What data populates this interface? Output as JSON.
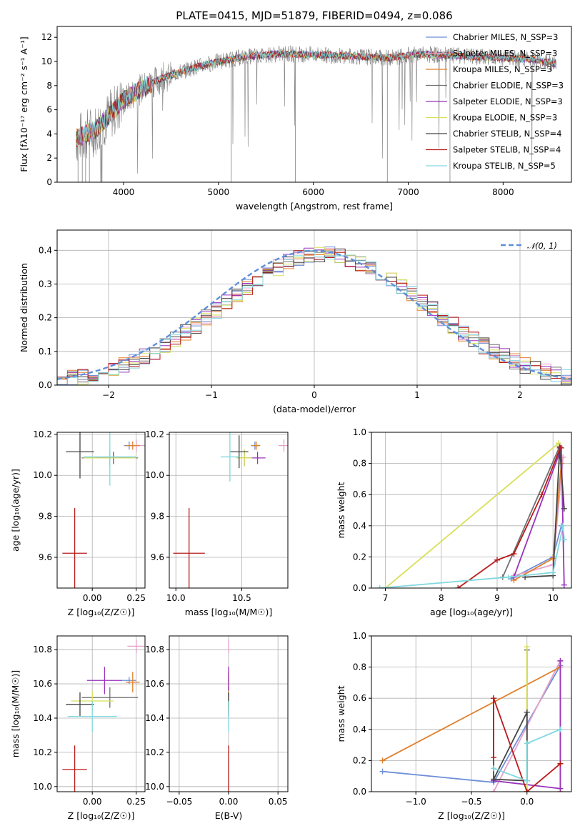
{
  "figure": {
    "title": "PLATE=0415, MJD=51879, FIBERID=0494, z=0.086"
  },
  "colors": {
    "Chabrier MILES": "#6e8fd8",
    "Salpeter MILES": "#e5a0c8",
    "Kroupa MILES": "#e07f2b",
    "Chabrier ELODIE": "#707070",
    "Salpeter ELODIE": "#9933bb",
    "Kroupa ELODIE": "#d8df58",
    "Chabrier STELIB": "#444444",
    "Salpeter STELIB": "#b81a1a",
    "Kroupa STELIB": "#7fd8e0",
    "normal": "#5f8fd8"
  },
  "chart_data": [
    {
      "id": "spectrum",
      "type": "line",
      "title": "PLATE=0415, MJD=51879, FIBERID=0494, z=0.086",
      "xlabel": "wavelength [Angstrom, rest frame]",
      "ylabel": "Flux [fλ10⁻¹⁷ erg cm⁻² s⁻¹ A⁻¹]",
      "xlim": [
        3300,
        8720
      ],
      "ylim": [
        0,
        12.9
      ],
      "xticks": [
        4000,
        5000,
        6000,
        7000,
        8000
      ],
      "yticks": [
        0,
        2,
        4,
        6,
        8,
        10,
        12
      ],
      "grid": false,
      "legend_position": "top-right",
      "legend": [
        "Chabrier MILES, N_SSP=3",
        "Salpeter MILES, N_SSP=3",
        "Kroupa MILES, N_SSP=3",
        "Chabrier ELODIE, N_SSP=3",
        "Salpeter ELODIE, N_SSP=3",
        "Kroupa ELODIE, N_SSP=3",
        "Chabrier STELIB, N_SSP=4",
        "Salpeter STELIB, N_SSP=4",
        "Kroupa STELIB, N_SSP=5"
      ],
      "continuum": {
        "x": [
          3500,
          3700,
          3850,
          4000,
          4200,
          4400,
          4700,
          5000,
          5300,
          5600,
          5900,
          6200,
          6500,
          6800,
          7100,
          7400,
          7700,
          8000,
          8300,
          8550
        ],
        "y": [
          3.6,
          4.3,
          5.5,
          6.8,
          7.8,
          8.6,
          9.4,
          10.0,
          10.4,
          10.6,
          10.6,
          10.5,
          10.4,
          10.3,
          10.6,
          10.5,
          10.4,
          10.3,
          10.2,
          9.8
        ]
      }
    },
    {
      "id": "residuals",
      "type": "histogram",
      "xlabel": "(data-model)/error",
      "ylabel": "Normed distribution",
      "xlim": [
        -2.5,
        2.5
      ],
      "ylim": [
        0,
        0.46
      ],
      "xticks": [
        -2,
        -1,
        0,
        1,
        2
      ],
      "yticks": [
        0.0,
        0.1,
        0.2,
        0.3,
        0.4
      ],
      "grid": true,
      "legend_position": "top-right",
      "normal_label": "𝒩(0, 1)",
      "bin_width": 0.1
    },
    {
      "id": "age_vs_Z",
      "type": "errorbar",
      "xlabel": "Z [log₁₀(Z/Z☉)]",
      "ylabel": "age  [log₁₀(age/yr)]",
      "xlim": [
        -0.2,
        0.3
      ],
      "ylim": [
        9.45,
        10.21
      ],
      "xticks": [
        0.0,
        0.25
      ],
      "yticks": [
        9.6,
        9.8,
        10.0,
        10.2
      ],
      "points": [
        {
          "series": "Chabrier MILES",
          "x": 0.21,
          "y": 10.145,
          "xerr": 0.03,
          "yerr": 0.02
        },
        {
          "series": "Salpeter MILES",
          "x": 0.25,
          "y": 10.145,
          "xerr": 0.05,
          "yerr": 0.03
        },
        {
          "series": "Kroupa MILES",
          "x": 0.23,
          "y": 10.145,
          "xerr": 0.04,
          "yerr": 0.02
        },
        {
          "series": "Chabrier ELODIE",
          "x": 0.1,
          "y": 10.085,
          "xerr": 0.16,
          "yerr": 0.04
        },
        {
          "series": "Salpeter ELODIE",
          "x": 0.12,
          "y": 10.085,
          "xerr": 0.1,
          "yerr": 0.03
        },
        {
          "series": "Kroupa ELODIE",
          "x": 0.1,
          "y": 10.085,
          "xerr": 0.15,
          "yerr": 0.04
        },
        {
          "series": "Chabrier STELIB",
          "x": -0.07,
          "y": 10.115,
          "xerr": 0.08,
          "yerr": 0.13
        },
        {
          "series": "Salpeter STELIB",
          "x": -0.1,
          "y": 9.62,
          "xerr": 0.07,
          "yerr": 0.22
        },
        {
          "series": "Kroupa STELIB",
          "x": 0.1,
          "y": 10.09,
          "xerr": 0.15,
          "yerr": 0.14
        }
      ]
    },
    {
      "id": "age_vs_mass",
      "type": "errorbar",
      "xlabel": "mass [log₁₀(M/M☉)]",
      "ylabel": "",
      "xlim": [
        9.95,
        10.85
      ],
      "ylim": [
        9.45,
        10.21
      ],
      "xticks": [
        10.0,
        10.5
      ],
      "yticks": [
        9.6,
        9.8,
        10.0,
        10.2
      ],
      "points": [
        {
          "series": "Chabrier MILES",
          "x": 10.6,
          "y": 10.145,
          "xerr": 0.03,
          "yerr": 0.02
        },
        {
          "series": "Salpeter MILES",
          "x": 10.82,
          "y": 10.145,
          "xerr": 0.04,
          "yerr": 0.03
        },
        {
          "series": "Kroupa MILES",
          "x": 10.61,
          "y": 10.145,
          "xerr": 0.03,
          "yerr": 0.02
        },
        {
          "series": "Chabrier ELODIE",
          "x": 10.52,
          "y": 10.085,
          "xerr": 0.06,
          "yerr": 0.04
        },
        {
          "series": "Salpeter ELODIE",
          "x": 10.62,
          "y": 10.085,
          "xerr": 0.06,
          "yerr": 0.03
        },
        {
          "series": "Kroupa ELODIE",
          "x": 10.52,
          "y": 10.085,
          "xerr": 0.06,
          "yerr": 0.04
        },
        {
          "series": "Chabrier STELIB",
          "x": 10.48,
          "y": 10.115,
          "xerr": 0.07,
          "yerr": 0.08
        },
        {
          "series": "Salpeter STELIB",
          "x": 10.1,
          "y": 9.62,
          "xerr": 0.12,
          "yerr": 0.22
        },
        {
          "series": "Kroupa STELIB",
          "x": 10.41,
          "y": 10.09,
          "xerr": 0.07,
          "yerr": 0.12
        }
      ]
    },
    {
      "id": "weight_vs_age",
      "type": "line",
      "xlabel": "age  [log₁₀(age/yr)]",
      "ylabel": "mass weight",
      "xlim": [
        6.75,
        10.33
      ],
      "ylim": [
        0,
        1
      ],
      "xticks": [
        7,
        8,
        9,
        10
      ],
      "yticks": [
        0.0,
        0.2,
        0.4,
        0.6,
        0.8,
        1.0
      ],
      "grid": true,
      "series": [
        {
          "name": "Chabrier MILES",
          "x": [
            9.25,
            10.0,
            10.15
          ],
          "y": [
            0.06,
            0.2,
            0.4
          ]
        },
        {
          "name": "Salpeter MILES",
          "x": [
            9.3,
            10.0,
            10.18
          ],
          "y": [
            0.08,
            0.15,
            0.84
          ]
        },
        {
          "name": "Kroupa MILES",
          "x": [
            9.3,
            10.0,
            10.15
          ],
          "y": [
            0.05,
            0.19,
            0.8
          ]
        },
        {
          "name": "Chabrier ELODIE",
          "x": [
            9.1,
            10.12
          ],
          "y": [
            0.07,
            0.91
          ]
        },
        {
          "name": "Salpeter ELODIE",
          "x": [
            9.3,
            10.15,
            10.2
          ],
          "y": [
            0.07,
            0.9,
            0.02
          ]
        },
        {
          "name": "Kroupa ELODIE",
          "x": [
            7.0,
            10.1
          ],
          "y": [
            0.0,
            0.93
          ]
        },
        {
          "name": "Chabrier STELIB",
          "x": [
            9.5,
            10.0,
            10.12,
            10.2
          ],
          "y": [
            0.07,
            0.08,
            0.9,
            0.51
          ]
        },
        {
          "name": "Salpeter STELIB",
          "x": [
            8.3,
            9.0,
            9.3,
            9.8,
            10.13
          ],
          "y": [
            0.0,
            0.18,
            0.22,
            0.6,
            0.9
          ]
        },
        {
          "name": "Kroupa STELIB",
          "x": [
            6.9,
            9.2,
            10.0,
            10.18,
            10.2
          ],
          "y": [
            0.0,
            0.07,
            0.1,
            0.4,
            0.31
          ]
        }
      ]
    },
    {
      "id": "mass_vs_Z",
      "type": "errorbar",
      "xlabel": "Z [log₁₀(Z/Z☉)]",
      "ylabel": "mass [log₁₀(M/M☉)]",
      "xlim": [
        -0.2,
        0.3
      ],
      "ylim": [
        9.97,
        10.88
      ],
      "xticks": [
        0.0,
        0.25
      ],
      "yticks": [
        10.0,
        10.2,
        10.4,
        10.6,
        10.8
      ],
      "points": [
        {
          "series": "Chabrier MILES",
          "x": 0.21,
          "y": 10.62,
          "xerr": 0.04,
          "yerr": 0.02
        },
        {
          "series": "Salpeter MILES",
          "x": 0.25,
          "y": 10.82,
          "xerr": 0.05,
          "yerr": 0.04
        },
        {
          "series": "Kroupa MILES",
          "x": 0.23,
          "y": 10.61,
          "xerr": 0.04,
          "yerr": 0.06
        },
        {
          "series": "Chabrier ELODIE",
          "x": 0.1,
          "y": 10.52,
          "xerr": 0.16,
          "yerr": 0.06
        },
        {
          "series": "Salpeter ELODIE",
          "x": 0.07,
          "y": 10.62,
          "xerr": 0.1,
          "yerr": 0.08
        },
        {
          "series": "Kroupa ELODIE",
          "x": 0.0,
          "y": 10.5,
          "xerr": 0.12,
          "yerr": 0.06
        },
        {
          "series": "Chabrier STELIB",
          "x": -0.07,
          "y": 10.48,
          "xerr": 0.08,
          "yerr": 0.07
        },
        {
          "series": "Salpeter STELIB",
          "x": -0.1,
          "y": 10.1,
          "xerr": 0.07,
          "yerr": 0.14
        },
        {
          "series": "Kroupa STELIB",
          "x": 0.0,
          "y": 10.41,
          "xerr": 0.14,
          "yerr": 0.09
        }
      ]
    },
    {
      "id": "mass_vs_EBV",
      "type": "errorbar",
      "xlabel": "E(B-V)",
      "ylabel": "",
      "xlim": [
        -0.06,
        0.06
      ],
      "ylim": [
        9.97,
        10.88
      ],
      "xticks": [
        -0.05,
        0.0,
        0.05
      ],
      "yticks": [
        10.0,
        10.2,
        10.4,
        10.6,
        10.8
      ],
      "points": [
        {
          "series": "Chabrier MILES",
          "x": 0.0,
          "y": 10.62,
          "xerr": 0,
          "yerr": 0.02
        },
        {
          "series": "Salpeter MILES",
          "x": 0.0,
          "y": 10.82,
          "xerr": 0,
          "yerr": 0.04
        },
        {
          "series": "Kroupa MILES",
          "x": 0.0,
          "y": 10.61,
          "xerr": 0,
          "yerr": 0.06
        },
        {
          "series": "Chabrier ELODIE",
          "x": 0.0,
          "y": 10.52,
          "xerr": 0,
          "yerr": 0.06
        },
        {
          "series": "Salpeter ELODIE",
          "x": 0.0,
          "y": 10.62,
          "xerr": 0,
          "yerr": 0.08
        },
        {
          "series": "Kroupa ELODIE",
          "x": 0.0,
          "y": 10.5,
          "xerr": 0,
          "yerr": 0.06
        },
        {
          "series": "Chabrier STELIB",
          "x": 0.0,
          "y": 10.48,
          "xerr": 0,
          "yerr": 0.07
        },
        {
          "series": "Salpeter STELIB",
          "x": 0.0,
          "y": 10.1,
          "xerr": 0,
          "yerr": 0.14
        },
        {
          "series": "Kroupa STELIB",
          "x": 0.0,
          "y": 10.41,
          "xerr": 0,
          "yerr": 0.09
        }
      ]
    },
    {
      "id": "weight_vs_Z",
      "type": "line",
      "xlabel": "Z [log₁₀(Z/Z☉)]",
      "ylabel": "mass weight",
      "xlim": [
        -1.4,
        0.4
      ],
      "ylim": [
        0,
        1
      ],
      "xticks": [
        -1.0,
        -0.5,
        0.0
      ],
      "yticks": [
        0.0,
        0.2,
        0.4,
        0.6,
        0.8,
        1.0
      ],
      "grid": true,
      "series": [
        {
          "name": "Chabrier MILES",
          "x": [
            -1.3,
            -0.3,
            0.3
          ],
          "y": [
            0.13,
            0.06,
            0.81
          ]
        },
        {
          "name": "Salpeter MILES",
          "x": [
            -0.3,
            0.3
          ],
          "y": [
            0.0,
            0.84
          ]
        },
        {
          "name": "Kroupa MILES",
          "x": [
            -1.3,
            0.3,
            0.3
          ],
          "y": [
            0.2,
            0.8,
            0.0
          ]
        },
        {
          "name": "Chabrier ELODIE",
          "x": [
            0.0,
            0.0
          ],
          "y": [
            0.07,
            0.91
          ]
        },
        {
          "name": "Salpeter ELODIE",
          "x": [
            -0.3,
            0.3,
            0.3
          ],
          "y": [
            0.07,
            0.02,
            0.84
          ]
        },
        {
          "name": "Kroupa ELODIE",
          "x": [
            0.0,
            0.0
          ],
          "y": [
            0.0,
            0.93
          ]
        },
        {
          "name": "Chabrier STELIB",
          "x": [
            -0.3,
            -0.3,
            0.0,
            0.0,
            -0.3
          ],
          "y": [
            0.6,
            0.08,
            0.07,
            0.51,
            0.08
          ]
        },
        {
          "name": "Salpeter STELIB",
          "x": [
            -0.3,
            -0.3,
            0.0,
            0.3
          ],
          "y": [
            0.22,
            0.6,
            0.0,
            0.18
          ]
        },
        {
          "name": "Kroupa STELIB",
          "x": [
            -0.3,
            0.0,
            0.0,
            0.3
          ],
          "y": [
            0.15,
            0.07,
            0.31,
            0.4
          ]
        }
      ]
    }
  ]
}
